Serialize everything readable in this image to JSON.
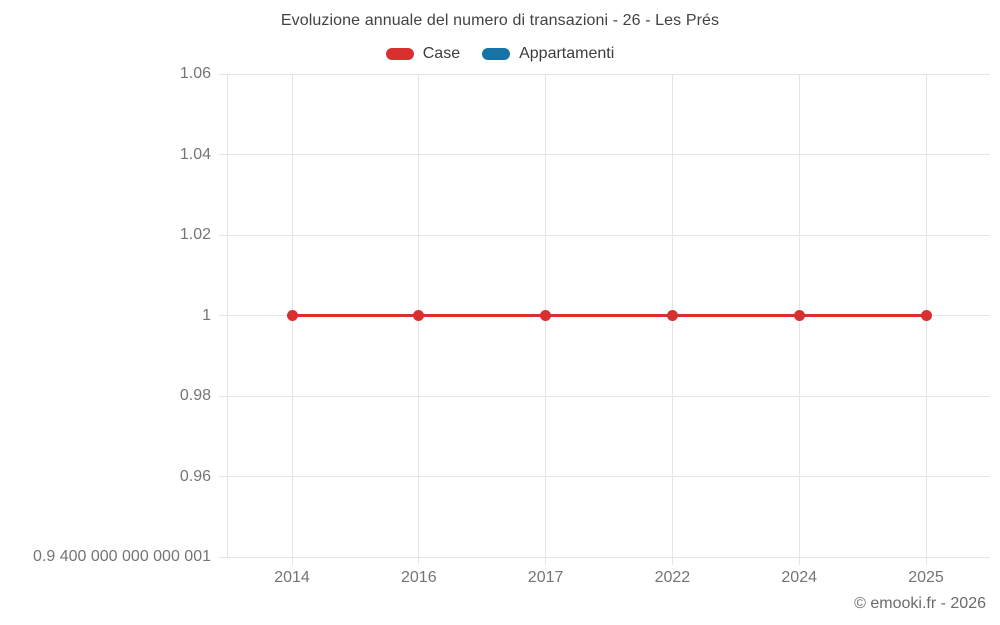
{
  "copyright": "© emooki.fr - 2026",
  "legend": {
    "items": [
      {
        "label": "Case",
        "color": "#d7302f"
      },
      {
        "label": "Appartamenti",
        "color": "#1673a5"
      }
    ]
  },
  "chart_data": {
    "type": "line",
    "title": "Evoluzione annuale del numero di transazioni - 26 - Les Prés",
    "categories": [
      "2014",
      "2016",
      "2017",
      "2022",
      "2024",
      "2025"
    ],
    "series": [
      {
        "name": "Case",
        "color": "#d7302f",
        "values": [
          1,
          1,
          1,
          1,
          1,
          1
        ]
      },
      {
        "name": "Appartamenti",
        "color": "#1673a5",
        "values": []
      }
    ],
    "yticks": [
      {
        "label": "1.06",
        "value": 1.06
      },
      {
        "label": "1.04",
        "value": 1.04
      },
      {
        "label": "1.02",
        "value": 1.02
      },
      {
        "label": "1",
        "value": 1
      },
      {
        "label": "0.98",
        "value": 0.98
      },
      {
        "label": "0.96",
        "value": 0.96
      },
      {
        "label": "0.9 400 000 000 000 001",
        "value": 0.9400000000000001
      }
    ],
    "ylim": [
      0.9400000000000001,
      1.06
    ],
    "grid": true,
    "legend_position": "top",
    "xlabel": "",
    "ylabel": ""
  }
}
